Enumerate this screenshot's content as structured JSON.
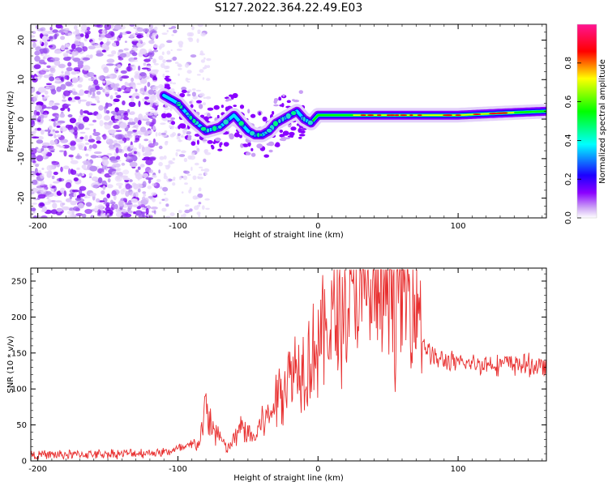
{
  "title": "S127.2022.364.22.49.E03",
  "chart_data": [
    {
      "type": "heatmap",
      "xlabel": "Height of straight line (km)",
      "ylabel": "Frequency (Hz)",
      "xlim": [
        -205,
        163
      ],
      "ylim": [
        -25,
        24
      ],
      "xticks": [
        -200,
        -100,
        0,
        100
      ],
      "xtick_labels": [
        "-200",
        "-100",
        "0",
        "100"
      ],
      "yticks": [
        -20,
        -10,
        0,
        10,
        20
      ],
      "ytick_labels": [
        "-20",
        "-10",
        "0",
        "10",
        "20"
      ],
      "ridge": {
        "x": [
          -110,
          -100,
          -90,
          -80,
          -70,
          -60,
          -55,
          -50,
          -45,
          -40,
          -35,
          -30,
          -25,
          -20,
          -15,
          -10,
          -5,
          0,
          20,
          50,
          80,
          100,
          130,
          163
        ],
        "y": [
          6,
          4,
          0,
          -3,
          -2,
          1,
          -1,
          -3,
          -4,
          -4,
          -3,
          -1,
          0,
          1,
          2,
          0,
          -1,
          1,
          1,
          1,
          1,
          1,
          1.5,
          2
        ]
      },
      "noise_region_x": [
        -205,
        -115
      ],
      "colorbar": {
        "label": "Normalized spectral amplitude",
        "range": [
          0,
          1
        ],
        "ticks": [
          0.0,
          0.2,
          0.4,
          0.6,
          0.8
        ],
        "tick_labels": [
          "0.0",
          "0.2",
          "0.4",
          "0.6",
          "0.8"
        ],
        "colors": [
          "#ffffff",
          "#cfa9f5",
          "#8a00ff",
          "#1c00ff",
          "#00ffff",
          "#00ff00",
          "#ffff00",
          "#ff0000",
          "#ff1493"
        ]
      }
    },
    {
      "type": "line",
      "xlabel": "Height of straight line (km)",
      "ylabel": "SNR (10 * v/v)",
      "xlim": [
        -205,
        163
      ],
      "ylim": [
        0,
        268
      ],
      "xticks": [
        -200,
        -100,
        0,
        100
      ],
      "xtick_labels": [
        "-200",
        "-100",
        "0",
        "100"
      ],
      "yticks": [
        0,
        50,
        100,
        150,
        200,
        250
      ],
      "ytick_labels": [
        "0",
        "50",
        "100",
        "150",
        "200",
        "250"
      ],
      "series": [
        {
          "name": "SNR",
          "color": "#e83030",
          "envelope_x": [
            -205,
            -140,
            -110,
            -95,
            -85,
            -80,
            -76,
            -72,
            -65,
            -60,
            -55,
            -50,
            -45,
            -40,
            -35,
            -30,
            -25,
            -20,
            -15,
            -10,
            -5,
            0,
            5,
            10,
            20,
            30,
            40,
            50,
            60,
            70,
            74,
            76,
            80,
            85,
            90,
            100,
            120,
            140,
            163
          ],
          "envelope_y": [
            8,
            10,
            12,
            18,
            25,
            75,
            45,
            40,
            15,
            30,
            45,
            40,
            30,
            60,
            60,
            85,
            110,
            120,
            130,
            140,
            145,
            165,
            180,
            190,
            215,
            230,
            235,
            235,
            235,
            238,
            200,
            160,
            150,
            140,
            140,
            135,
            135,
            135,
            130
          ]
        }
      ]
    }
  ]
}
